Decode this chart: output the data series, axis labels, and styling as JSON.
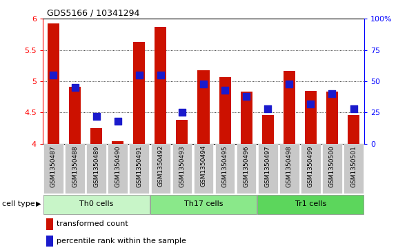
{
  "title": "GDS5166 / 10341294",
  "samples": [
    "GSM1350487",
    "GSM1350488",
    "GSM1350489",
    "GSM1350490",
    "GSM1350491",
    "GSM1350492",
    "GSM1350493",
    "GSM1350494",
    "GSM1350495",
    "GSM1350496",
    "GSM1350497",
    "GSM1350498",
    "GSM1350499",
    "GSM1350500",
    "GSM1350501"
  ],
  "transformed_count": [
    5.93,
    4.91,
    4.25,
    4.04,
    5.63,
    5.87,
    4.38,
    5.18,
    5.07,
    4.83,
    4.46,
    5.17,
    4.85,
    4.83,
    4.46
  ],
  "percentile_rank": [
    55,
    45,
    22,
    18,
    55,
    55,
    25,
    48,
    43,
    38,
    28,
    48,
    32,
    40,
    28
  ],
  "groups": [
    {
      "name": "Th0 cells",
      "indices": [
        0,
        1,
        2,
        3,
        4
      ],
      "color": "#c8f5c8"
    },
    {
      "name": "Th17 cells",
      "indices": [
        5,
        6,
        7,
        8,
        9
      ],
      "color": "#8ae88a"
    },
    {
      "name": "Tr1 cells",
      "indices": [
        10,
        11,
        12,
        13,
        14
      ],
      "color": "#5cd65c"
    }
  ],
  "ylim": [
    4.0,
    6.0
  ],
  "yticks": [
    4.0,
    4.5,
    5.0,
    5.5,
    6.0
  ],
  "ytick_labels": [
    "4",
    "4.5",
    "5",
    "5.5",
    "6"
  ],
  "right_yticks": [
    0,
    25,
    50,
    75,
    100
  ],
  "right_ylabels": [
    "0",
    "25",
    "50",
    "75",
    "100%"
  ],
  "bar_color": "#cc1100",
  "dot_color": "#1a1acc",
  "bar_width": 0.55,
  "dot_size": 45,
  "cell_type_label": "cell type",
  "legend_items": [
    {
      "label": "transformed count",
      "color": "#cc1100"
    },
    {
      "label": "percentile rank within the sample",
      "color": "#1a1acc"
    }
  ],
  "xtick_bg": "#c8c8c8",
  "plot_bg": "#ffffff",
  "fig_bg": "#ffffff"
}
